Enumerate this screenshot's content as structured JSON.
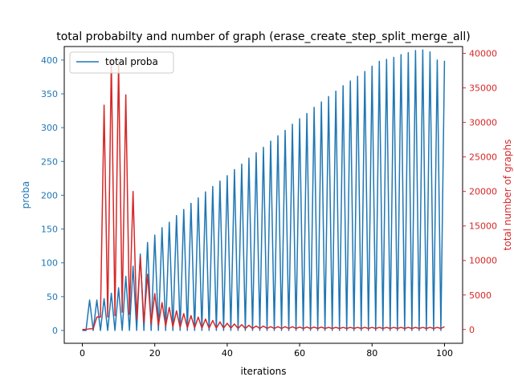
{
  "chart_data": {
    "type": "line",
    "title": "total probabilty and number of graph (erase_create_step_split_merge_all)",
    "xlabel": "iterations",
    "ylabel_left": "proba",
    "ylabel_right": "total number of graphs",
    "xlim": [
      -5,
      105
    ],
    "ylim_left": [
      -19,
      420
    ],
    "ylim_right": [
      -2000,
      41000
    ],
    "xticks": [
      "0",
      "20",
      "40",
      "60",
      "80",
      "100"
    ],
    "yticks_left": [
      "0",
      "50",
      "100",
      "150",
      "200",
      "250",
      "300",
      "350",
      "400"
    ],
    "yticks_right": [
      "0",
      "5000",
      "10000",
      "15000",
      "20000",
      "25000",
      "30000",
      "35000",
      "40000"
    ],
    "grid": false,
    "legend_placement": "upper-left",
    "series": [
      {
        "name": "total proba",
        "axis": "left",
        "color": "#1f77b4",
        "x": [
          0,
          1,
          2,
          3,
          4,
          5,
          6,
          7,
          8,
          9,
          10,
          11,
          12,
          13,
          14,
          15,
          16,
          17,
          18,
          19,
          20,
          21,
          22,
          23,
          24,
          25,
          26,
          27,
          28,
          29,
          30,
          31,
          32,
          33,
          34,
          35,
          36,
          37,
          38,
          39,
          40,
          41,
          42,
          43,
          44,
          45,
          46,
          47,
          48,
          49,
          50,
          51,
          52,
          53,
          54,
          55,
          56,
          57,
          58,
          59,
          60,
          61,
          62,
          63,
          64,
          65,
          66,
          67,
          68,
          69,
          70,
          71,
          72,
          73,
          74,
          75,
          76,
          77,
          78,
          79,
          80,
          81,
          82,
          83,
          84,
          85,
          86,
          87,
          88,
          89,
          90,
          91,
          92,
          93,
          94,
          95,
          96,
          97,
          98,
          99,
          100
        ],
        "values": [
          0,
          0,
          45,
          0,
          45,
          0,
          47,
          0,
          55,
          0,
          63,
          0,
          80,
          0,
          95,
          0,
          113,
          0,
          130,
          0,
          141,
          0,
          152,
          0,
          160,
          0,
          170,
          0,
          179,
          0,
          188,
          0,
          196,
          0,
          205,
          0,
          213,
          0,
          221,
          0,
          229,
          0,
          238,
          0,
          246,
          0,
          255,
          0,
          263,
          0,
          271,
          0,
          280,
          0,
          288,
          0,
          296,
          0,
          305,
          0,
          313,
          0,
          321,
          0,
          330,
          0,
          338,
          0,
          346,
          0,
          354,
          0,
          362,
          0,
          369,
          0,
          376,
          0,
          383,
          0,
          391,
          0,
          398,
          0,
          401,
          0,
          404,
          0,
          408,
          0,
          411,
          0,
          414,
          0,
          415,
          0,
          412,
          0,
          400,
          0,
          399
        ]
      },
      {
        "name": "total number of graphs",
        "axis": "right",
        "color": "#d62728",
        "x": [
          0,
          1,
          2,
          3,
          4,
          5,
          6,
          7,
          8,
          9,
          10,
          11,
          12,
          13,
          14,
          15,
          16,
          17,
          18,
          19,
          20,
          21,
          22,
          23,
          24,
          25,
          26,
          27,
          28,
          29,
          30,
          31,
          32,
          33,
          34,
          35,
          36,
          37,
          38,
          39,
          40,
          41,
          42,
          43,
          44,
          45,
          46,
          47,
          48,
          49,
          50,
          51,
          52,
          53,
          54,
          55,
          56,
          57,
          58,
          59,
          60,
          61,
          62,
          63,
          64,
          65,
          66,
          67,
          68,
          69,
          70,
          71,
          72,
          73,
          74,
          75,
          76,
          77,
          78,
          79,
          80,
          81,
          82,
          83,
          84,
          85,
          86,
          87,
          88,
          89,
          90,
          91,
          92,
          93,
          94,
          95,
          96,
          97,
          98,
          99,
          100
        ],
        "values": [
          0,
          0,
          100,
          100,
          1800,
          1800,
          32500,
          1800,
          39000,
          2000,
          38800,
          2500,
          34000,
          2200,
          20000,
          1500,
          10500,
          1000,
          8000,
          800,
          5200,
          600,
          3900,
          500,
          3200,
          400,
          2700,
          300,
          2300,
          250,
          2000,
          250,
          1800,
          200,
          1500,
          200,
          1300,
          200,
          1100,
          200,
          900,
          200,
          800,
          150,
          700,
          150,
          600,
          150,
          500,
          150,
          500,
          150,
          400,
          150,
          400,
          150,
          400,
          150,
          400,
          150,
          350,
          150,
          350,
          150,
          350,
          150,
          350,
          150,
          300,
          150,
          300,
          150,
          300,
          150,
          300,
          150,
          300,
          150,
          300,
          150,
          300,
          150,
          300,
          150,
          300,
          150,
          300,
          150,
          300,
          150,
          300,
          150,
          300,
          150,
          300,
          150,
          300,
          150,
          300,
          150,
          400
        ]
      }
    ]
  }
}
